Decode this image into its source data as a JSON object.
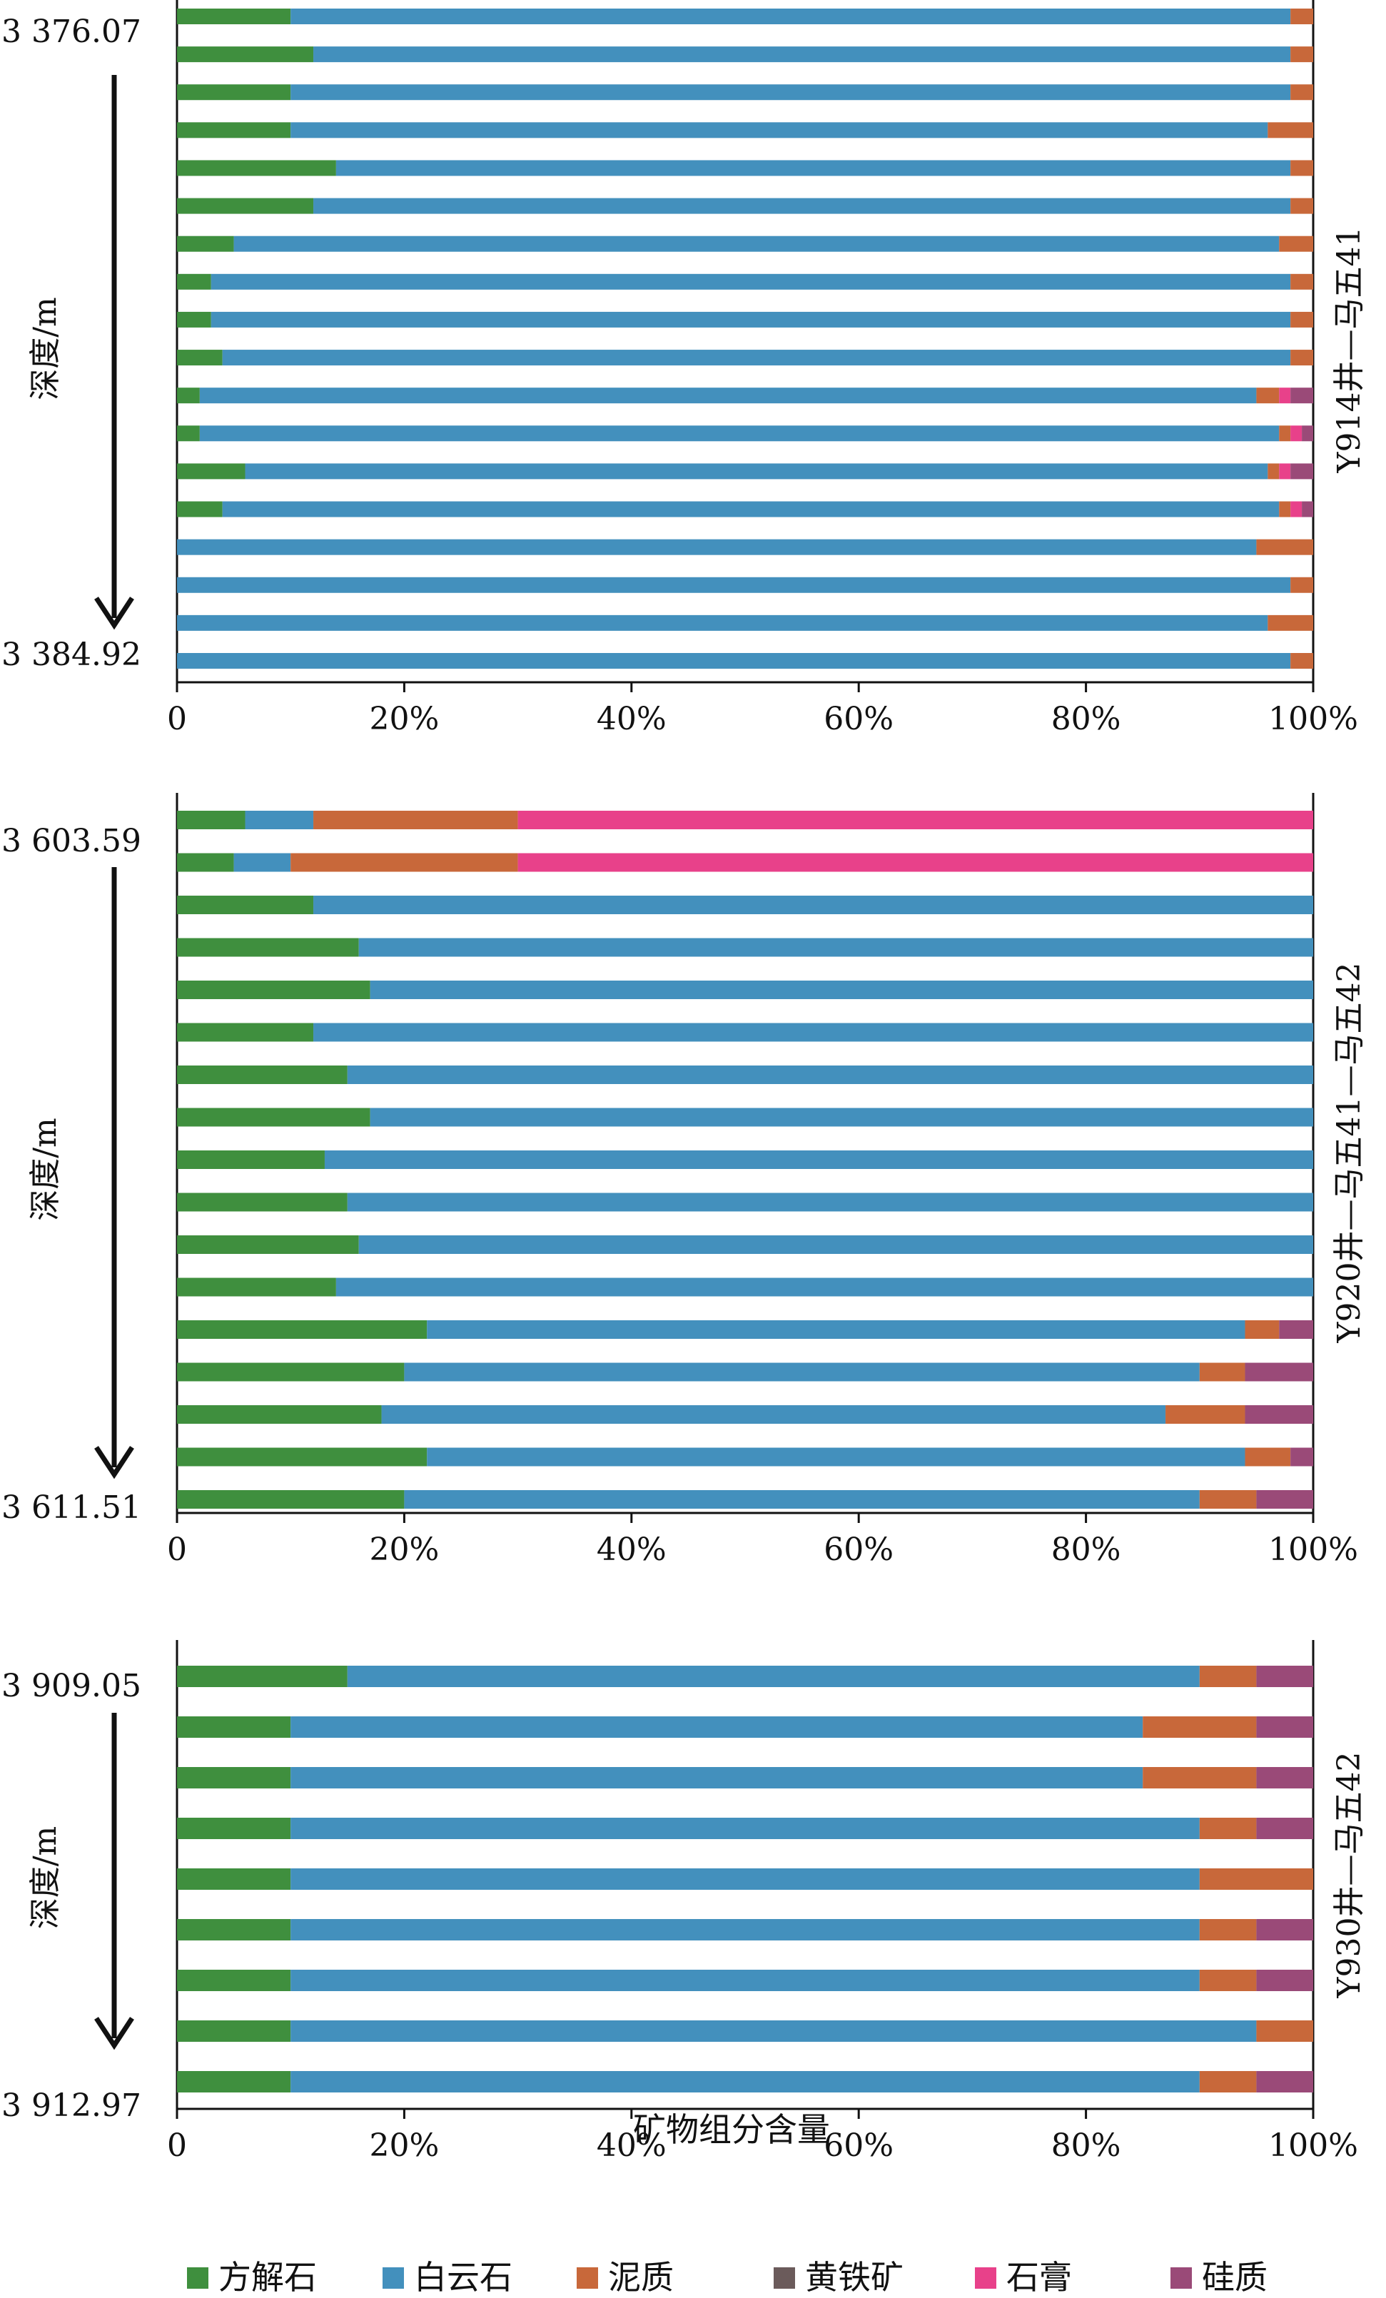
{
  "colors": {
    "calcite": "#3f8f3e",
    "dolomite": "#4390bd",
    "mudstone": "#c8683a",
    "pyrite": "#6b5b5b",
    "gypsum": "#e8418a",
    "siliceous": "#9a4a78"
  },
  "legend": [
    {
      "key": "calcite",
      "label": "方解石"
    },
    {
      "key": "dolomite",
      "label": "白云石"
    },
    {
      "key": "mudstone",
      "label": "泥质"
    },
    {
      "key": "pyrite",
      "label": "黄铁矿"
    },
    {
      "key": "gypsum",
      "label": "石膏"
    },
    {
      "key": "siliceous",
      "label": "硅质"
    }
  ],
  "xlabel": "矿物组分含量",
  "chart_data": [
    {
      "type": "bar",
      "orientation": "horizontal-stacked",
      "well": "Y914井—马五41",
      "ylabel": "深度/m",
      "depth_top": "3 376.07",
      "depth_bottom": "3 384.92",
      "xlim": [
        0,
        100
      ],
      "xticks": [
        "0",
        "20%",
        "40%",
        "60%",
        "80%",
        "100%"
      ],
      "rows": [
        {
          "calcite": 10,
          "dolomite": 88,
          "mudstone": 2
        },
        {
          "calcite": 12,
          "dolomite": 86,
          "mudstone": 2
        },
        {
          "calcite": 10,
          "dolomite": 88,
          "mudstone": 2
        },
        {
          "calcite": 10,
          "dolomite": 86,
          "mudstone": 4
        },
        {
          "calcite": 14,
          "dolomite": 84,
          "mudstone": 2
        },
        {
          "calcite": 12,
          "dolomite": 86,
          "mudstone": 2
        },
        {
          "calcite": 5,
          "dolomite": 92,
          "mudstone": 3
        },
        {
          "calcite": 3,
          "dolomite": 95,
          "mudstone": 2
        },
        {
          "calcite": 3,
          "dolomite": 95,
          "mudstone": 2
        },
        {
          "calcite": 4,
          "dolomite": 94,
          "mudstone": 2
        },
        {
          "calcite": 2,
          "dolomite": 93,
          "mudstone": 2,
          "gypsum": 1,
          "siliceous": 2
        },
        {
          "calcite": 2,
          "dolomite": 95,
          "mudstone": 1,
          "gypsum": 1,
          "siliceous": 1
        },
        {
          "calcite": 6,
          "dolomite": 90,
          "mudstone": 1,
          "gypsum": 1,
          "siliceous": 2
        },
        {
          "calcite": 4,
          "dolomite": 93,
          "mudstone": 1,
          "gypsum": 1,
          "siliceous": 1
        },
        {
          "calcite": 0,
          "dolomite": 95,
          "mudstone": 5
        },
        {
          "calcite": 0,
          "dolomite": 98,
          "mudstone": 2
        },
        {
          "calcite": 0,
          "dolomite": 96,
          "mudstone": 4
        },
        {
          "calcite": 0,
          "dolomite": 98,
          "mudstone": 2
        }
      ]
    },
    {
      "type": "bar",
      "orientation": "horizontal-stacked",
      "well": "Y920井—马五41—马五42",
      "ylabel": "深度/m",
      "depth_top": "3 603.59",
      "depth_bottom": "3 611.51",
      "xlim": [
        0,
        100
      ],
      "xticks": [
        "0",
        "20%",
        "40%",
        "60%",
        "80%",
        "100%"
      ],
      "rows": [
        {
          "calcite": 6,
          "dolomite": 6,
          "mudstone": 18,
          "gypsum": 70
        },
        {
          "calcite": 5,
          "dolomite": 5,
          "mudstone": 20,
          "gypsum": 70
        },
        {
          "calcite": 12,
          "dolomite": 88
        },
        {
          "calcite": 16,
          "dolomite": 84
        },
        {
          "calcite": 17,
          "dolomite": 83
        },
        {
          "calcite": 12,
          "dolomite": 88
        },
        {
          "calcite": 15,
          "dolomite": 85
        },
        {
          "calcite": 17,
          "dolomite": 83
        },
        {
          "calcite": 13,
          "dolomite": 87
        },
        {
          "calcite": 15,
          "dolomite": 85
        },
        {
          "calcite": 16,
          "dolomite": 84
        },
        {
          "calcite": 14,
          "dolomite": 86
        },
        {
          "calcite": 22,
          "dolomite": 72,
          "mudstone": 3,
          "siliceous": 3
        },
        {
          "calcite": 20,
          "dolomite": 70,
          "mudstone": 4,
          "siliceous": 6
        },
        {
          "calcite": 18,
          "dolomite": 69,
          "mudstone": 7,
          "siliceous": 6
        },
        {
          "calcite": 22,
          "dolomite": 72,
          "mudstone": 4,
          "siliceous": 2
        },
        {
          "calcite": 20,
          "dolomite": 70,
          "mudstone": 5,
          "siliceous": 5
        }
      ]
    },
    {
      "type": "bar",
      "orientation": "horizontal-stacked",
      "well": "Y930井—马五42",
      "ylabel": "深度/m",
      "depth_top": "3 909.05",
      "depth_bottom": "3 912.97",
      "xlim": [
        0,
        100
      ],
      "xticks": [
        "0",
        "20%",
        "40%",
        "60%",
        "80%",
        "100%"
      ],
      "rows": [
        {
          "calcite": 15,
          "dolomite": 75,
          "mudstone": 5,
          "siliceous": 5
        },
        {
          "calcite": 10,
          "dolomite": 75,
          "mudstone": 10,
          "siliceous": 5
        },
        {
          "calcite": 10,
          "dolomite": 75,
          "mudstone": 10,
          "siliceous": 5
        },
        {
          "calcite": 10,
          "dolomite": 80,
          "mudstone": 5,
          "siliceous": 5
        },
        {
          "calcite": 10,
          "dolomite": 80,
          "mudstone": 10
        },
        {
          "calcite": 10,
          "dolomite": 80,
          "mudstone": 5,
          "siliceous": 5
        },
        {
          "calcite": 10,
          "dolomite": 80,
          "mudstone": 5,
          "siliceous": 5
        },
        {
          "calcite": 10,
          "dolomite": 85,
          "mudstone": 5
        },
        {
          "calcite": 10,
          "dolomite": 80,
          "mudstone": 5,
          "siliceous": 5
        }
      ]
    }
  ]
}
